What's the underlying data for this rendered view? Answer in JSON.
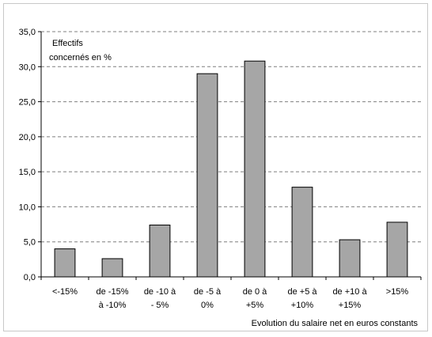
{
  "chart_data": {
    "type": "bar",
    "categories": [
      [
        "<-15%"
      ],
      [
        "de -15%",
        "à -10%"
      ],
      [
        "de -10 à",
        "- 5%"
      ],
      [
        "de -5 à",
        "0%"
      ],
      [
        "de 0 à",
        "+5%"
      ],
      [
        "de +5 à",
        "+10%"
      ],
      [
        "de +10 à",
        "+15%"
      ],
      [
        ">15%"
      ]
    ],
    "values": [
      4.0,
      2.6,
      7.4,
      29.0,
      30.8,
      12.8,
      5.3,
      7.8
    ],
    "ylabel_lines": [
      "Effectifs",
      "concernés en %"
    ],
    "xlabel": "Evolution du salaire net en euros constants",
    "ylim": [
      0,
      35
    ],
    "yticks": [
      "0,0",
      "5,0",
      "10,0",
      "15,0",
      "20,0",
      "25,0",
      "30,0",
      "35,0"
    ],
    "grid": true,
    "bar_color": "#a6a6a6",
    "bar_edge_color": "#000000",
    "grid_color": "#7f7f7f"
  }
}
